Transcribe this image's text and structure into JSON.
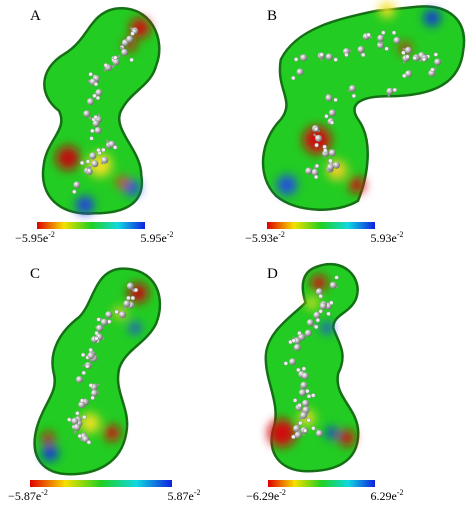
{
  "panels": [
    {
      "label": "A",
      "colorbar": {
        "min": {
          "mantissa": "−5.95e",
          "exponent": "-2"
        },
        "max": {
          "mantissa": "5.95e",
          "exponent": "-2"
        }
      }
    },
    {
      "label": "B",
      "colorbar": {
        "min": {
          "mantissa": "−5.93e",
          "exponent": "-2"
        },
        "max": {
          "mantissa": "5.93e",
          "exponent": "-2"
        }
      }
    },
    {
      "label": "C",
      "colorbar": {
        "min": {
          "mantissa": "−5.87e",
          "exponent": "-2"
        },
        "max": {
          "mantissa": "5.87e",
          "exponent": "-2"
        }
      }
    },
    {
      "label": "D",
      "colorbar": {
        "min": {
          "mantissa": "−6.29e",
          "exponent": "-2"
        },
        "max": {
          "mantissa": "6.29e",
          "exponent": "-2"
        }
      }
    }
  ]
}
